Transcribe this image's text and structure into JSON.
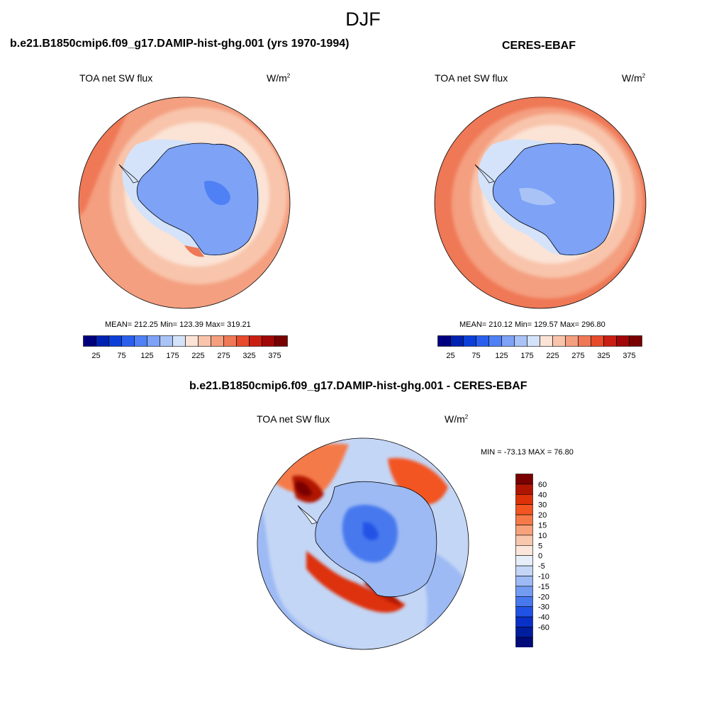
{
  "figure": {
    "title": "DJF"
  },
  "panels": [
    {
      "title": "b.e21.B1850cmip6.f09_g17.DAMIP-hist-ghg.001 (yrs 1970-1994)",
      "variable": "TOA net SW flux",
      "units": {
        "base": "W/m",
        "exp": "2"
      },
      "stats": "MEAN= 212.25  Min= 123.39  Max= 319.21",
      "colorbar": {
        "colors": [
          "#00007e",
          "#0022b0",
          "#0b3fd8",
          "#2a5fee",
          "#4f80f5",
          "#7da2f6",
          "#a9c3f7",
          "#d4e3f9",
          "#fbe3d5",
          "#f8c4ab",
          "#f49f80",
          "#ef7856",
          "#e74b2c",
          "#c91f12",
          "#a10707",
          "#780000"
        ],
        "tick_labels": [
          "25",
          "75",
          "125",
          "175",
          "225",
          "275",
          "325",
          "375"
        ]
      }
    },
    {
      "title": "CERES-EBAF",
      "variable": "TOA net SW flux",
      "units": {
        "base": "W/m",
        "exp": "2"
      },
      "stats": "MEAN= 210.12  Min= 129.57  Max= 296.80",
      "colorbar": {
        "colors": [
          "#00007e",
          "#0022b0",
          "#0b3fd8",
          "#2a5fee",
          "#4f80f5",
          "#7da2f6",
          "#a9c3f7",
          "#d4e3f9",
          "#fbe3d5",
          "#f8c4ab",
          "#f49f80",
          "#ef7856",
          "#e74b2c",
          "#c91f12",
          "#a10707",
          "#780000"
        ],
        "tick_labels": [
          "25",
          "75",
          "125",
          "175",
          "225",
          "275",
          "325",
          "375"
        ]
      }
    },
    {
      "title": "b.e21.B1850cmip6.f09_g17.DAMIP-hist-ghg.001 - CERES-EBAF",
      "variable": "TOA net SW flux",
      "units": {
        "base": "W/m",
        "exp": "2"
      },
      "stats": "MIN = -73.13 MAX =  76.80",
      "colorbar": {
        "colors": [
          "#7a0000",
          "#b01500",
          "#dd3208",
          "#f25520",
          "#f57a48",
          "#f7a27a",
          "#f9c7ad",
          "#fbe6d9",
          "#e6eef9",
          "#c4d6f6",
          "#9dbaf4",
          "#729bf2",
          "#4778ee",
          "#2052e6",
          "#0a30c8",
          "#001d9e",
          "#000a78"
        ],
        "tick_labels": [
          "60",
          "40",
          "30",
          "20",
          "15",
          "10",
          "5",
          "0",
          "-5",
          "-10",
          "-15",
          "-20",
          "-30",
          "-40",
          "-60"
        ]
      }
    }
  ]
}
